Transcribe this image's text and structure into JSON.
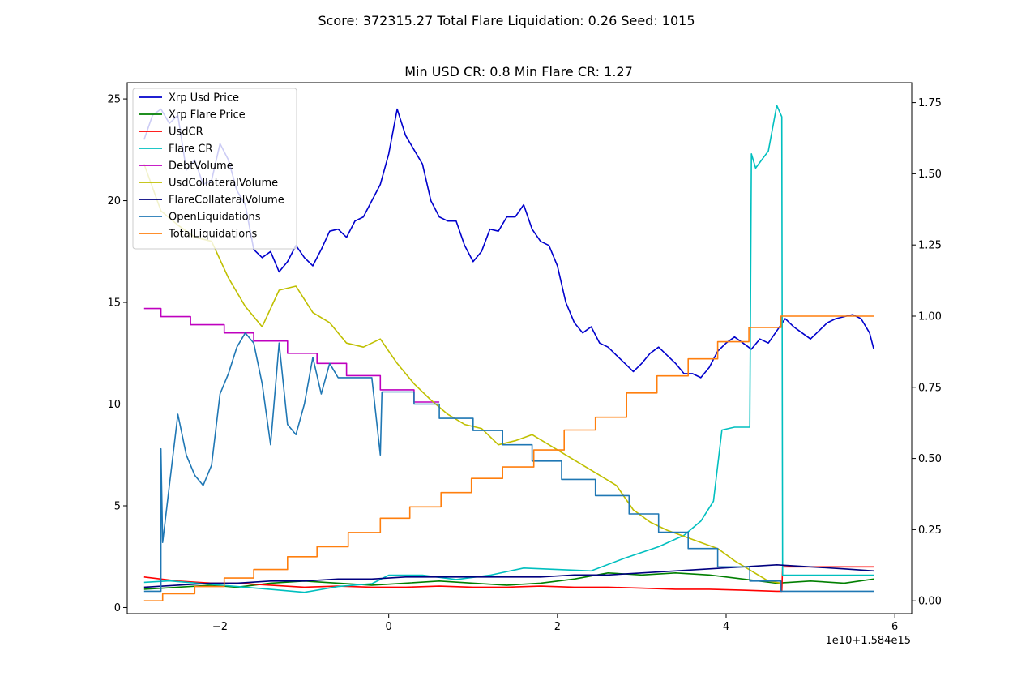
{
  "figure": {
    "suptitle": "Score: 372315.27 Total Flare Liquidation: 0.26 Seed: 1015"
  },
  "chart_data": {
    "type": "line",
    "title": "Min USD CR: 0.8 Min Flare CR: 1.27",
    "x_offset_label": "1e10+1.584e15",
    "xlim": [
      -3.1,
      6.2
    ],
    "ylim_left": [
      -0.3,
      25.8
    ],
    "ylim_right": [
      -0.045,
      1.82
    ],
    "x_ticks": [
      -2,
      0,
      2,
      4,
      6
    ],
    "x_tick_labels": [
      "−2",
      "0",
      "2",
      "4",
      "6"
    ],
    "y_left_ticks": [
      0,
      5,
      10,
      15,
      20,
      25
    ],
    "y_left_tick_labels": [
      "0",
      "5",
      "10",
      "15",
      "20",
      "25"
    ],
    "y_right_ticks": [
      0.0,
      0.25,
      0.5,
      0.75,
      1.0,
      1.25,
      1.5,
      1.75
    ],
    "y_right_tick_labels": [
      "0.00",
      "0.25",
      "0.50",
      "0.75",
      "1.00",
      "1.25",
      "1.50",
      "1.75"
    ],
    "legend_position": "upper-left",
    "grid": false,
    "series": [
      {
        "name": "Xrp Usd Price",
        "color": "#0000cc",
        "axis": "left",
        "x": [
          -2.9,
          -2.8,
          -2.7,
          -2.6,
          -2.5,
          -2.4,
          -2.3,
          -2.2,
          -2.1,
          -2.0,
          -1.9,
          -1.8,
          -1.7,
          -1.6,
          -1.5,
          -1.4,
          -1.3,
          -1.2,
          -1.1,
          -1.0,
          -0.9,
          -0.8,
          -0.7,
          -0.6,
          -0.5,
          -0.4,
          -0.3,
          -0.2,
          -0.1,
          0.0,
          0.1,
          0.2,
          0.3,
          0.4,
          0.5,
          0.6,
          0.7,
          0.8,
          0.9,
          1.0,
          1.1,
          1.2,
          1.3,
          1.4,
          1.5,
          1.6,
          1.7,
          1.8,
          1.9,
          2.0,
          2.1,
          2.2,
          2.3,
          2.4,
          2.5,
          2.6,
          2.7,
          2.8,
          2.9,
          3.0,
          3.1,
          3.2,
          3.3,
          3.4,
          3.5,
          3.6,
          3.7,
          3.8,
          3.9,
          4.0,
          4.1,
          4.2,
          4.3,
          4.4,
          4.5,
          4.6,
          4.7,
          4.8,
          4.9,
          5.0,
          5.1,
          5.2,
          5.3,
          5.4,
          5.5,
          5.6,
          5.7,
          5.75
        ],
        "y": [
          23.0,
          24.2,
          24.5,
          23.8,
          24.2,
          21.5,
          22.0,
          20.8,
          21.0,
          22.8,
          22.0,
          20.5,
          19.8,
          17.6,
          17.2,
          17.5,
          16.5,
          17.0,
          17.8,
          17.2,
          16.8,
          17.6,
          18.5,
          18.6,
          18.2,
          19.0,
          19.2,
          20.0,
          20.8,
          22.3,
          24.5,
          23.2,
          22.5,
          21.8,
          20.0,
          19.2,
          19.0,
          19.0,
          17.8,
          17.0,
          17.5,
          18.6,
          18.5,
          19.2,
          19.2,
          19.8,
          18.6,
          18.0,
          17.8,
          16.8,
          15.0,
          14.0,
          13.5,
          13.8,
          13.0,
          12.8,
          12.4,
          12.0,
          11.6,
          12.0,
          12.5,
          12.8,
          12.4,
          12.0,
          11.5,
          11.5,
          11.3,
          11.8,
          12.6,
          13.0,
          13.3,
          13.0,
          12.7,
          13.2,
          13.0,
          13.6,
          14.2,
          13.8,
          13.5,
          13.2,
          13.6,
          14.0,
          14.2,
          14.3,
          14.4,
          14.2,
          13.5,
          12.7
        ]
      },
      {
        "name": "Xrp Flare Price",
        "color": "#007f00",
        "axis": "left",
        "x": [
          -2.9,
          -2.5,
          -2.1,
          -1.8,
          -1.4,
          -1.0,
          -0.6,
          -0.2,
          0.2,
          0.6,
          1.0,
          1.4,
          1.8,
          2.2,
          2.6,
          3.0,
          3.4,
          3.8,
          4.2,
          4.6,
          5.0,
          5.4,
          5.75
        ],
        "y": [
          0.9,
          1.0,
          1.1,
          1.0,
          1.2,
          1.3,
          1.2,
          1.1,
          1.2,
          1.3,
          1.2,
          1.1,
          1.2,
          1.4,
          1.7,
          1.6,
          1.7,
          1.6,
          1.4,
          1.2,
          1.3,
          1.2,
          1.4
        ]
      },
      {
        "name": "UsdCR",
        "color": "#ff0000",
        "axis": "left",
        "x": [
          -2.9,
          -2.5,
          -2.1,
          -1.8,
          -1.4,
          -1.0,
          -0.6,
          -0.2,
          0.2,
          0.6,
          1.0,
          1.4,
          1.8,
          2.2,
          2.6,
          3.0,
          3.4,
          3.8,
          4.2,
          4.6,
          4.66,
          4.67,
          5.75
        ],
        "y": [
          1.5,
          1.3,
          1.2,
          1.2,
          1.1,
          1.0,
          1.05,
          1.0,
          1.0,
          1.05,
          1.0,
          1.0,
          1.05,
          1.0,
          1.0,
          0.95,
          0.9,
          0.9,
          0.85,
          0.8,
          0.8,
          2.0,
          2.0
        ]
      },
      {
        "name": "Flare CR",
        "color": "#00bfbf",
        "axis": "right",
        "x": [
          -2.9,
          -2.6,
          -2.2,
          -1.8,
          -1.4,
          -1.0,
          -0.6,
          -0.2,
          0.0,
          0.4,
          0.8,
          1.2,
          1.6,
          2.0,
          2.4,
          2.8,
          3.2,
          3.5,
          3.7,
          3.85,
          3.95,
          4.1,
          4.28,
          4.3,
          4.35,
          4.5,
          4.6,
          4.66,
          4.67,
          5.75
        ],
        "y": [
          0.065,
          0.07,
          0.06,
          0.05,
          0.04,
          0.03,
          0.05,
          0.06,
          0.09,
          0.09,
          0.075,
          0.09,
          0.115,
          0.11,
          0.105,
          0.15,
          0.19,
          0.23,
          0.28,
          0.35,
          0.6,
          0.61,
          0.61,
          1.57,
          1.52,
          1.58,
          1.74,
          1.7,
          0.09,
          0.09
        ]
      },
      {
        "name": "DebtVolume",
        "color": "#bf00bf",
        "axis": "left",
        "x": [
          -2.9,
          -2.7,
          -2.7,
          -2.35,
          -2.35,
          -1.95,
          -1.95,
          -1.6,
          -1.6,
          -1.2,
          -1.2,
          -0.85,
          -0.85,
          -0.5,
          -0.5,
          -0.1,
          -0.1,
          0.3,
          0.3,
          0.6
        ],
        "y": [
          14.7,
          14.7,
          14.3,
          14.3,
          13.9,
          13.9,
          13.5,
          13.5,
          13.1,
          13.1,
          12.5,
          12.5,
          12.0,
          12.0,
          11.4,
          11.4,
          10.7,
          10.7,
          10.1,
          10.1
        ]
      },
      {
        "name": "UsdCollateralVolume",
        "color": "#bfbf00",
        "axis": "left",
        "x": [
          -2.9,
          -2.7,
          -2.5,
          -2.3,
          -2.1,
          -1.9,
          -1.7,
          -1.5,
          -1.3,
          -1.1,
          -0.9,
          -0.7,
          -0.5,
          -0.3,
          -0.1,
          0.1,
          0.3,
          0.5,
          0.7,
          0.9,
          1.1,
          1.3,
          1.5,
          1.7,
          1.9,
          2.1,
          2.3,
          2.5,
          2.7,
          2.9,
          3.1,
          3.3,
          3.5,
          3.7,
          3.9,
          4.1,
          4.3,
          4.5,
          4.65
        ],
        "y": [
          21.8,
          19.5,
          18.8,
          18.2,
          18.0,
          16.2,
          14.8,
          13.8,
          15.6,
          15.8,
          14.5,
          14.0,
          13.0,
          12.8,
          13.2,
          12.0,
          11.0,
          10.2,
          9.5,
          9.0,
          8.8,
          8.0,
          8.2,
          8.5,
          8.0,
          7.5,
          7.0,
          6.5,
          6.0,
          4.8,
          4.2,
          3.8,
          3.5,
          3.2,
          2.9,
          2.3,
          1.8,
          1.3,
          1.2
        ]
      },
      {
        "name": "FlareCollateralVolume",
        "color": "#00007f",
        "axis": "left",
        "x": [
          -2.9,
          -2.5,
          -2.1,
          -1.8,
          -1.4,
          -1.0,
          -0.6,
          -0.2,
          0.2,
          0.6,
          1.0,
          1.4,
          1.8,
          2.2,
          2.6,
          3.0,
          3.4,
          3.8,
          4.2,
          4.6,
          5.0,
          5.4,
          5.75
        ],
        "y": [
          1.0,
          1.1,
          1.2,
          1.2,
          1.3,
          1.3,
          1.4,
          1.4,
          1.5,
          1.5,
          1.5,
          1.5,
          1.5,
          1.6,
          1.6,
          1.7,
          1.8,
          1.9,
          2.0,
          2.1,
          2.0,
          1.9,
          1.8
        ]
      },
      {
        "name": "OpenLiquidations",
        "color": "#1f77b4",
        "axis": "left",
        "x": [
          -2.9,
          -2.7,
          -2.7,
          -2.68,
          -2.6,
          -2.5,
          -2.4,
          -2.3,
          -2.2,
          -2.1,
          -2.0,
          -1.9,
          -1.8,
          -1.7,
          -1.6,
          -1.5,
          -1.4,
          -1.3,
          -1.2,
          -1.1,
          -1.0,
          -0.9,
          -0.8,
          -0.7,
          -0.6,
          -0.5,
          -0.4,
          -0.2,
          -0.1,
          -0.08,
          0.0,
          0.3,
          0.3,
          0.6,
          0.6,
          1.0,
          1.0,
          1.35,
          1.35,
          1.7,
          1.7,
          2.05,
          2.05,
          2.45,
          2.45,
          2.85,
          2.85,
          3.2,
          3.2,
          3.55,
          3.55,
          3.9,
          3.9,
          4.28,
          4.28,
          4.65,
          4.65,
          5.75
        ],
        "y": [
          0.8,
          0.8,
          7.8,
          3.2,
          6.0,
          9.5,
          7.5,
          6.5,
          6.0,
          7.0,
          10.5,
          11.5,
          12.8,
          13.5,
          13.0,
          11.0,
          8.0,
          13.0,
          9.0,
          8.5,
          10.0,
          12.3,
          10.5,
          12.0,
          11.3,
          11.3,
          11.3,
          11.3,
          7.5,
          10.6,
          10.6,
          10.6,
          10.0,
          10.0,
          9.3,
          9.3,
          8.7,
          8.7,
          8.0,
          8.0,
          7.2,
          7.2,
          6.3,
          6.3,
          5.5,
          5.5,
          4.6,
          4.6,
          3.7,
          3.7,
          2.9,
          2.9,
          2.0,
          2.0,
          1.3,
          1.3,
          0.8,
          0.8
        ]
      },
      {
        "name": "TotalLiquidations",
        "color": "#ff7f0e",
        "axis": "right",
        "x": [
          -2.9,
          -2.68,
          -2.68,
          -2.3,
          -2.3,
          -1.95,
          -1.95,
          -1.6,
          -1.6,
          -1.2,
          -1.2,
          -0.85,
          -0.85,
          -0.48,
          -0.48,
          -0.1,
          -0.1,
          0.25,
          0.25,
          0.62,
          0.62,
          0.98,
          0.98,
          1.35,
          1.35,
          1.72,
          1.72,
          2.08,
          2.08,
          2.45,
          2.45,
          2.82,
          2.82,
          3.18,
          3.18,
          3.55,
          3.55,
          3.9,
          3.9,
          4.27,
          4.27,
          4.65,
          4.65,
          5.75
        ],
        "y": [
          0.0,
          0.0,
          0.025,
          0.025,
          0.05,
          0.05,
          0.08,
          0.08,
          0.11,
          0.11,
          0.155,
          0.155,
          0.19,
          0.19,
          0.24,
          0.24,
          0.29,
          0.29,
          0.33,
          0.33,
          0.38,
          0.38,
          0.43,
          0.43,
          0.47,
          0.47,
          0.53,
          0.53,
          0.6,
          0.6,
          0.645,
          0.645,
          0.73,
          0.73,
          0.79,
          0.79,
          0.85,
          0.85,
          0.91,
          0.91,
          0.96,
          0.96,
          1.0,
          1.0
        ]
      }
    ]
  }
}
